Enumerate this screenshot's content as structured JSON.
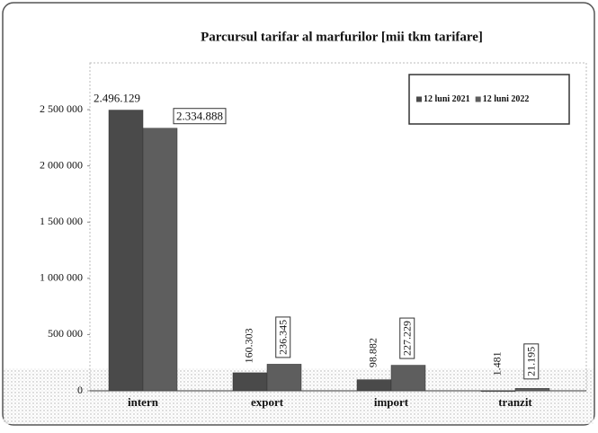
{
  "chart_data": {
    "type": "bar",
    "title": "Parcursul tarifar al marfurilor [mii tkm tarifare]",
    "categories": [
      "intern",
      "export",
      "import",
      "tranzit"
    ],
    "series": [
      {
        "name": "12 luni 2021",
        "color": "#4a4a4a",
        "values": [
          2496129,
          160303,
          98882,
          1481
        ],
        "value_labels": [
          "2.496.129",
          "160.303",
          "98.882",
          "1.481"
        ]
      },
      {
        "name": "12 luni 2022",
        "color": "#5e5e5e",
        "values": [
          2334888,
          236345,
          227229,
          21195
        ],
        "value_labels": [
          "2.334.888",
          "236.345",
          "227.229",
          "21.195"
        ]
      }
    ],
    "ylim": [
      0,
      2900000
    ],
    "yticks": [
      0,
      {
        "value": 500000,
        "label": "500 000"
      },
      {
        "value": 1000000,
        "label": "1 000 000"
      },
      {
        "value": 1500000,
        "label": "1 500 000"
      },
      {
        "value": 2000000,
        "label": "2 000 000"
      },
      {
        "value": 2500000,
        "label": "2 500 000"
      }
    ],
    "legend": "top-right",
    "grid": false
  }
}
